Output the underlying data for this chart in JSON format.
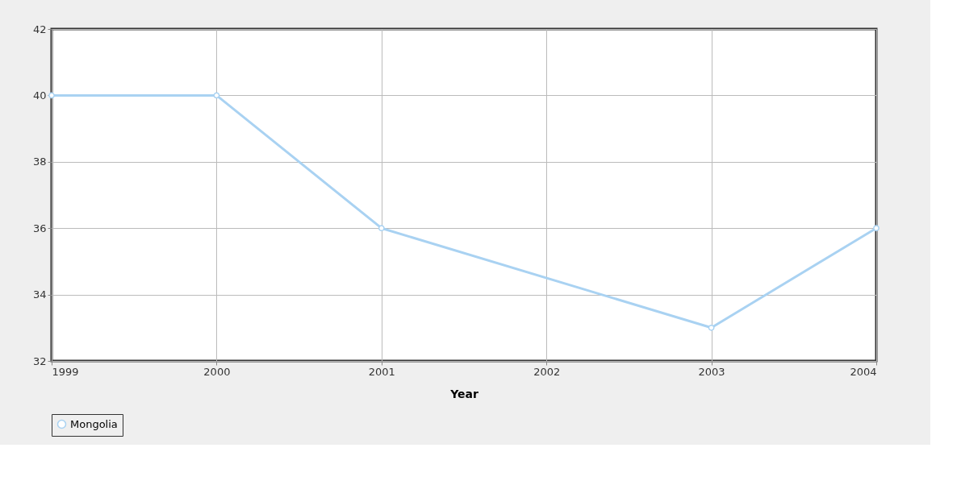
{
  "chart_data": {
    "type": "line",
    "xlabel": "Year",
    "x": [
      1999,
      2000,
      2001,
      2003,
      2004
    ],
    "series": [
      {
        "name": "Mongolia",
        "color": "#a9d2f2",
        "values": [
          40,
          40,
          36,
          33,
          36
        ]
      }
    ],
    "xlim": [
      1999,
      2004
    ],
    "xticks": [
      1999,
      2000,
      2001,
      2002,
      2003,
      2004
    ],
    "ylim": [
      32,
      42
    ],
    "yticks": [
      32,
      34,
      36,
      38,
      40,
      42
    ],
    "grid": true,
    "legend": "bottom",
    "marker": "circle",
    "line_style": "solid"
  }
}
